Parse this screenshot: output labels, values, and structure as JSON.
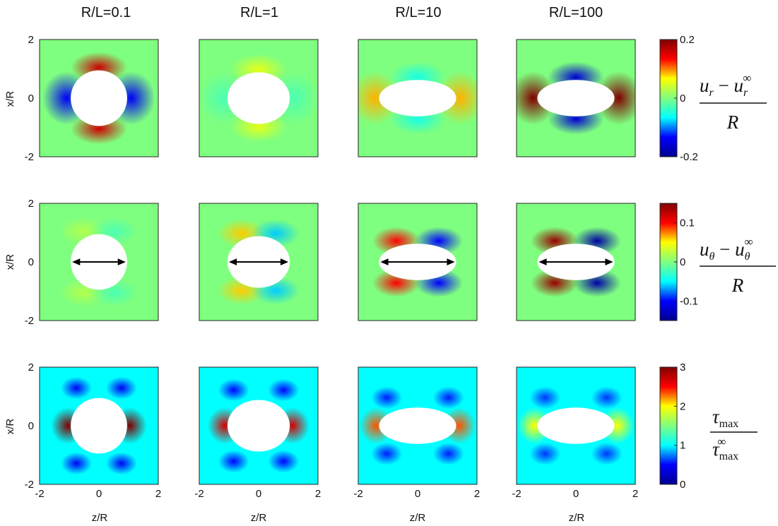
{
  "chart_data": {
    "type": "heatmap",
    "column_titles": [
      "R/L=0.1",
      "R/L=1",
      "R/L=10",
      "R/L=100"
    ],
    "r_over_l": [
      0.1,
      1,
      10,
      100
    ],
    "xlabel": "z/R",
    "ylabel": "x/R",
    "xlim": [
      -2,
      2
    ],
    "ylim": [
      -2,
      2
    ],
    "x_ticks": [
      "-2",
      "0",
      "2"
    ],
    "y_ticks": [
      "2",
      "0",
      "-2"
    ],
    "inclusion_semi_axes": [
      {
        "a": 0.95,
        "b": 0.95
      },
      {
        "a": 1.05,
        "b": 0.88
      },
      {
        "a": 1.3,
        "b": 0.62
      },
      {
        "a": 1.3,
        "b": 0.62
      }
    ],
    "rows": [
      {
        "field": "u_r",
        "quantity_tex": "(u_r - u_r^∞) / R",
        "colorbar": {
          "min": -0.2,
          "max": 0.2,
          "ticks": [
            "0.2",
            "0",
            "-0.2"
          ],
          "tick_values": [
            0.2,
            0,
            -0.2
          ]
        },
        "background_value": 0.0,
        "arrow": false
      },
      {
        "field": "u_theta",
        "quantity_tex": "(u_θ - u_θ^∞) / R",
        "colorbar": {
          "min": -0.15,
          "max": 0.15,
          "ticks": [
            "0.1",
            "0",
            "-0.1"
          ],
          "tick_values": [
            0.1,
            0,
            -0.1
          ]
        },
        "background_value": 0.0,
        "arrow": true
      },
      {
        "field": "tau_max",
        "quantity_tex": "τ_max / τ_max^∞",
        "colorbar": {
          "min": 0,
          "max": 3,
          "ticks": [
            "3",
            "2",
            "1",
            "0"
          ],
          "tick_values": [
            3,
            2,
            1,
            0
          ]
        },
        "background_value": 1.0,
        "arrow": false
      }
    ]
  },
  "colors": {
    "jet": [
      "#00008f",
      "#0000ff",
      "#00ffff",
      "#7fff7f",
      "#ffff00",
      "#ff0000",
      "#800000"
    ]
  }
}
